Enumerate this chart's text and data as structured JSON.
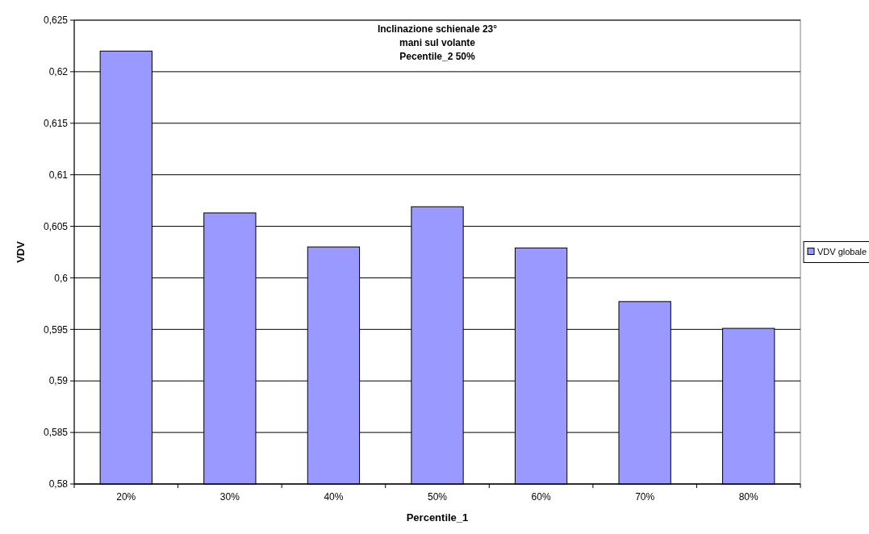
{
  "chart_data": {
    "type": "bar",
    "title": "Inclinazione schienale 23°\nmani sul volante\nPecentile_2 50%",
    "xlabel": "Percentile_1",
    "ylabel": "VDV",
    "categories": [
      "20%",
      "30%",
      "40%",
      "50%",
      "60%",
      "70%",
      "80%"
    ],
    "series": [
      {
        "name": "VDV globale",
        "color": "#9999ff",
        "values": [
          0.622,
          0.6063,
          0.603,
          0.6069,
          0.6029,
          0.5977,
          0.5951
        ]
      }
    ],
    "ylim": [
      0.58,
      0.625
    ],
    "yticks": [
      {
        "value": 0.58,
        "label": "0,58"
      },
      {
        "value": 0.585,
        "label": "0,585"
      },
      {
        "value": 0.59,
        "label": "0,59"
      },
      {
        "value": 0.595,
        "label": "0,595"
      },
      {
        "value": 0.6,
        "label": "0,6"
      },
      {
        "value": 0.605,
        "label": "0,605"
      },
      {
        "value": 0.61,
        "label": "0,61"
      },
      {
        "value": 0.615,
        "label": "0,615"
      },
      {
        "value": 0.62,
        "label": "0,62"
      },
      {
        "value": 0.625,
        "label": "0,625"
      }
    ],
    "grid": "y",
    "legend": "right"
  }
}
